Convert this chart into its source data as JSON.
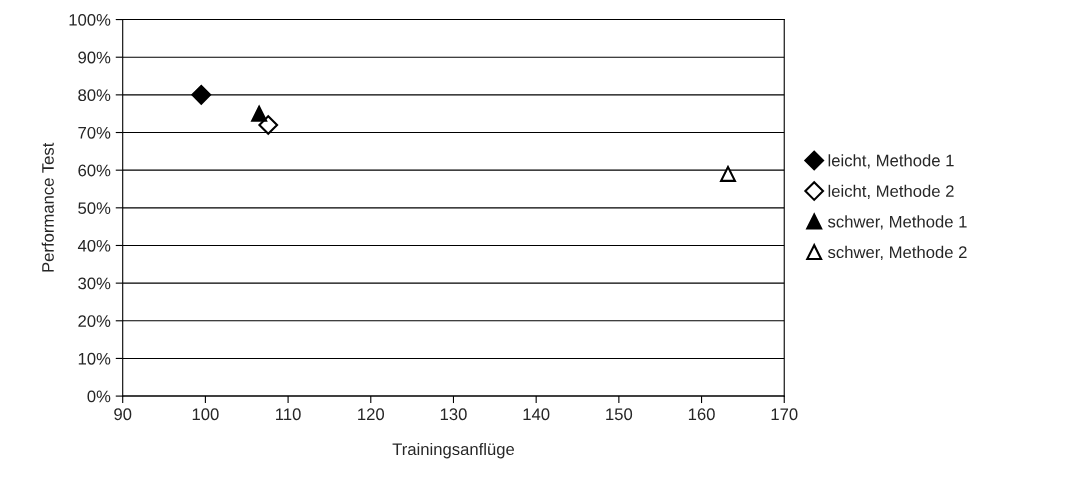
{
  "chart_data": {
    "type": "scatter",
    "xlabel": "Trainingsanflüge",
    "ylabel": "Performance Test",
    "xlim": [
      90,
      170
    ],
    "xticks": [
      90,
      100,
      110,
      120,
      130,
      140,
      150,
      160,
      170
    ],
    "ylim": [
      0,
      100
    ],
    "yticks": [
      {
        "value": 0,
        "label": "0%"
      },
      {
        "value": 10,
        "label": "10%"
      },
      {
        "value": 20,
        "label": "20%"
      },
      {
        "value": 30,
        "label": "30%"
      },
      {
        "value": 40,
        "label": "40%"
      },
      {
        "value": 50,
        "label": "50%"
      },
      {
        "value": 60,
        "label": "60%"
      },
      {
        "value": 70,
        "label": "70%"
      },
      {
        "value": 80,
        "label": "80%"
      },
      {
        "value": 90,
        "label": "90%"
      },
      {
        "value": 100,
        "label": "100%"
      }
    ],
    "grid": "y",
    "legend": "right",
    "series": [
      {
        "name": "leicht, Methode 1",
        "color": "#000000",
        "marker": "diamond",
        "x": [
          99.5
        ],
        "values": [
          80
        ]
      },
      {
        "name": "leicht, Methode 2",
        "color": "#000000",
        "marker": "diamond",
        "colors": [
          "#ffffff"
        ],
        "x": [
          107.6
        ],
        "values": [
          72
        ]
      },
      {
        "name": "schwer, Methode 1",
        "color": "#000000",
        "marker": "triangle",
        "x": [
          106.5
        ],
        "values": [
          75
        ]
      },
      {
        "name": "schwer, Methode 2",
        "color": "#000000",
        "marker": "triangle",
        "colors": [
          "#ffffff"
        ],
        "x": [
          163.2
        ],
        "values": [
          59
        ]
      }
    ]
  }
}
